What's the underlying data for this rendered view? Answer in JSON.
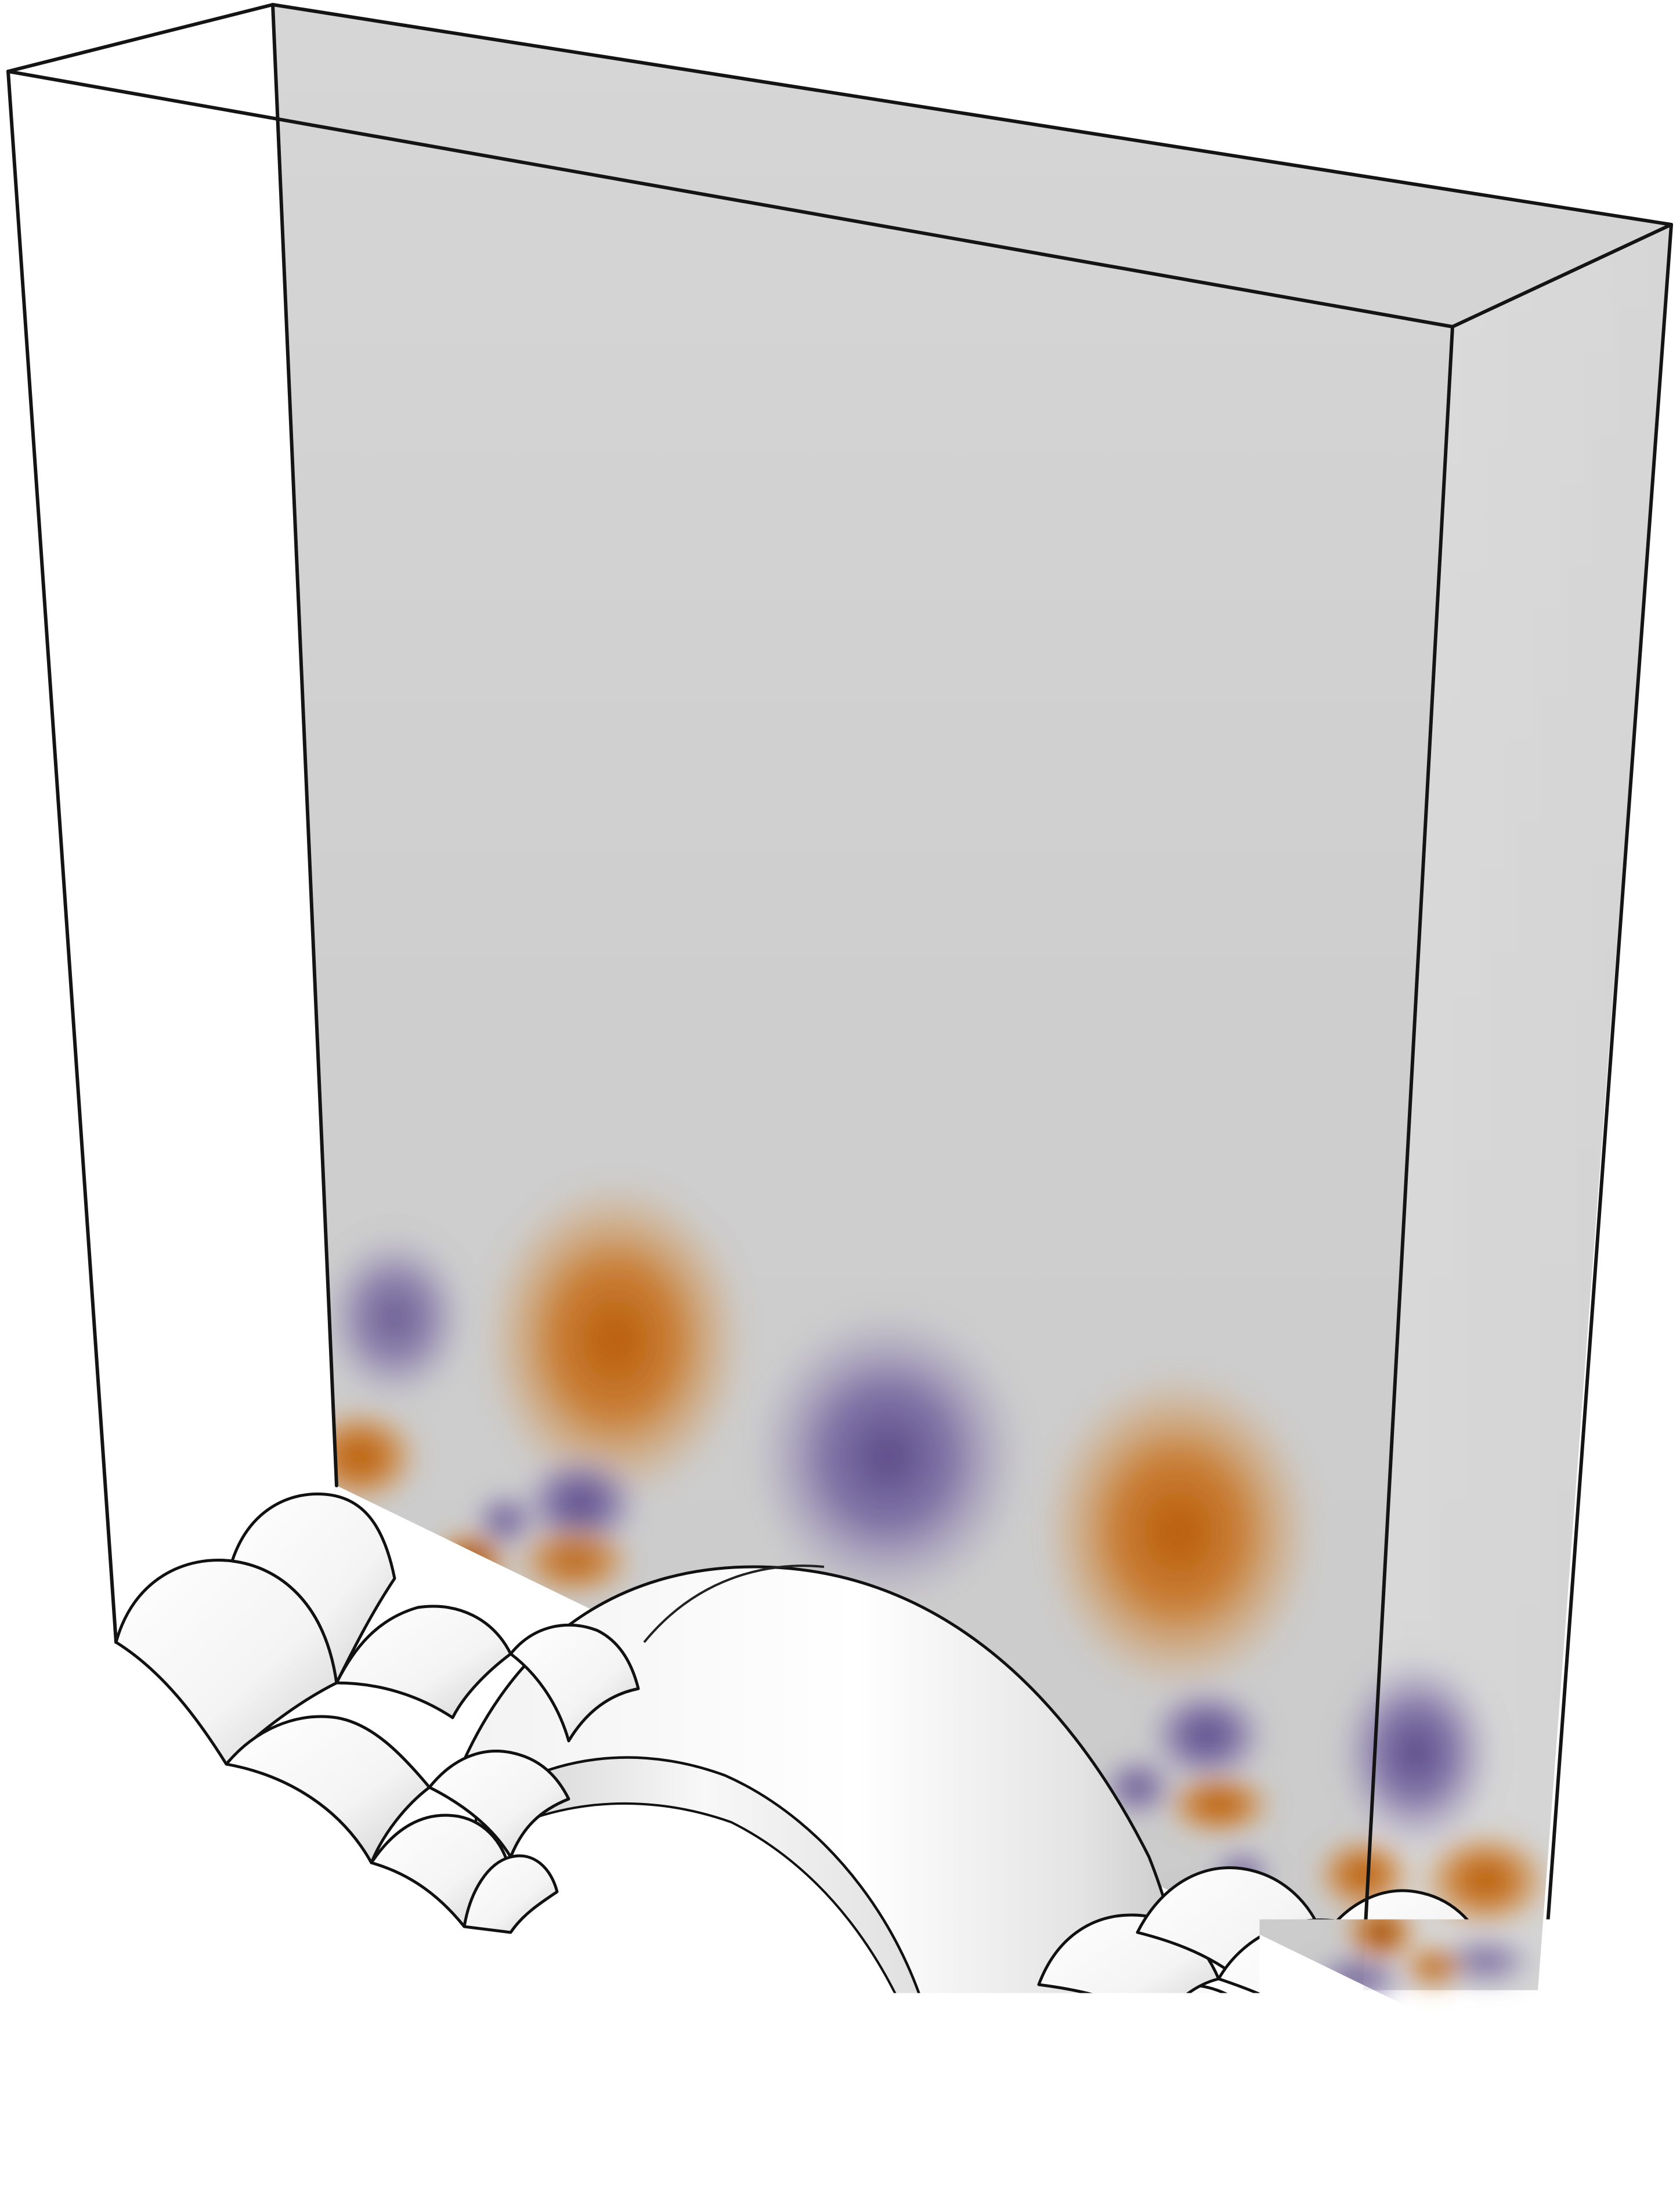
{
  "figure": {
    "kind": "3D domain rendering: translucent box above a scalloped obstacle surface, with a wave field on the back wall",
    "text": []
  },
  "colors": {
    "background": "#ffffff",
    "back_wall_gray": "#cdcdcd",
    "box_edge": "#141414",
    "positive_field": "#c0620a",
    "negative_field": "#5e4d8c",
    "surface_light": "#fbfbfb",
    "surface_shadow": "#c6c6c6"
  },
  "elements": {
    "wave_lobes_orange": 10,
    "wave_lobes_purple": 12,
    "large_arch": 1,
    "small_bumps": 24
  }
}
